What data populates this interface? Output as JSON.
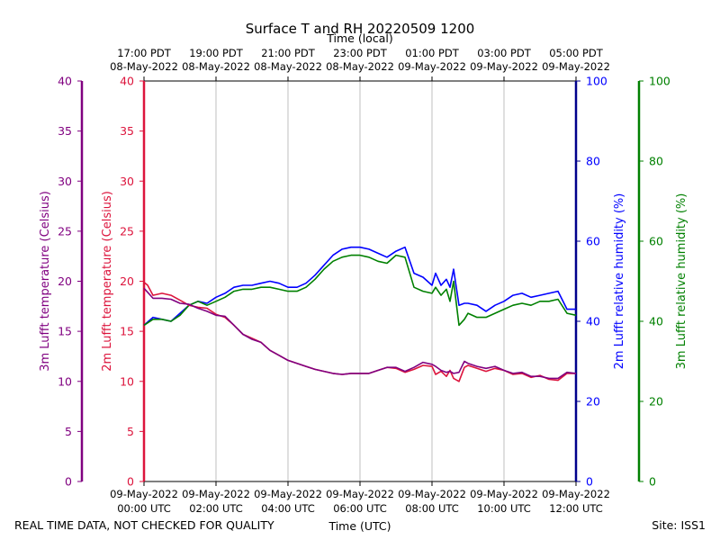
{
  "chart_data": {
    "type": "line",
    "title": "Surface T and RH 20220509 1200",
    "top_xlabel": "Time (local)",
    "xlabel": "Time (UTC)",
    "footer_left": "REAL TIME DATA, NOT CHECKED FOR QUALITY",
    "footer_right": "Site: ISS1",
    "x_range_hours": [
      0,
      12
    ],
    "bottom_ticks": [
      {
        "hour": 0,
        "date": "09-May-2022",
        "time": "00:00 UTC"
      },
      {
        "hour": 2,
        "date": "09-May-2022",
        "time": "02:00 UTC"
      },
      {
        "hour": 4,
        "date": "09-May-2022",
        "time": "04:00 UTC"
      },
      {
        "hour": 6,
        "date": "09-May-2022",
        "time": "06:00 UTC"
      },
      {
        "hour": 8,
        "date": "09-May-2022",
        "time": "08:00 UTC"
      },
      {
        "hour": 10,
        "date": "09-May-2022",
        "time": "10:00 UTC"
      },
      {
        "hour": 12,
        "date": "09-May-2022",
        "time": "12:00 UTC"
      }
    ],
    "top_ticks": [
      {
        "hour": 0,
        "time": "17:00 PDT",
        "date": "08-May-2022"
      },
      {
        "hour": 2,
        "time": "19:00 PDT",
        "date": "08-May-2022"
      },
      {
        "hour": 4,
        "time": "21:00 PDT",
        "date": "08-May-2022"
      },
      {
        "hour": 6,
        "time": "23:00 PDT",
        "date": "08-May-2022"
      },
      {
        "hour": 8,
        "time": "01:00 PDT",
        "date": "09-May-2022"
      },
      {
        "hour": 10,
        "time": "03:00 PDT",
        "date": "09-May-2022"
      },
      {
        "hour": 12,
        "time": "05:00 PDT",
        "date": "09-May-2022"
      }
    ],
    "axes": {
      "temp3": {
        "label": "3m Lufft temperature (Celsius)",
        "color": "#800080",
        "ylim": [
          0,
          40
        ],
        "ticks": [
          0,
          5,
          10,
          15,
          20,
          25,
          30,
          35,
          40
        ]
      },
      "temp2": {
        "label": "2m Lufft temperature (Celsius)",
        "color": "#dc143c",
        "ylim": [
          0,
          40
        ],
        "ticks": [
          0,
          5,
          10,
          15,
          20,
          25,
          30,
          35,
          40
        ]
      },
      "rh2": {
        "label": "2m Lufft relative humidity (%)",
        "color": "#0000ff",
        "spine_color": "#00008b",
        "ylim": [
          0,
          100
        ],
        "ticks": [
          0,
          20,
          40,
          60,
          80,
          100
        ]
      },
      "rh3": {
        "label": "3m Lufft relative humidity (%)",
        "color": "#008000",
        "ylim": [
          0,
          100
        ],
        "ticks": [
          0,
          20,
          40,
          60,
          80,
          100
        ]
      }
    },
    "series": [
      {
        "name": "2m Lufft temperature",
        "axis": "temp2",
        "color": "#dc143c",
        "x": [
          0,
          0.1,
          0.25,
          0.5,
          0.75,
          1.0,
          1.25,
          1.5,
          1.75,
          2.0,
          2.25,
          2.5,
          2.75,
          3.0,
          3.25,
          3.5,
          3.75,
          4.0,
          4.25,
          4.5,
          4.75,
          5.0,
          5.25,
          5.5,
          5.75,
          6.0,
          6.25,
          6.5,
          6.75,
          7.0,
          7.25,
          7.5,
          7.75,
          8.0,
          8.1,
          8.25,
          8.4,
          8.5,
          8.6,
          8.75,
          8.9,
          9.0,
          9.25,
          9.5,
          9.75,
          10.0,
          10.25,
          10.5,
          10.75,
          11.0,
          11.25,
          11.5,
          11.75,
          12.0
        ],
        "values": [
          19.9,
          19.6,
          18.6,
          18.8,
          18.6,
          18.1,
          17.6,
          17.4,
          17.3,
          16.7,
          16.4,
          15.6,
          14.7,
          14.3,
          13.9,
          13.1,
          12.6,
          12.1,
          11.8,
          11.5,
          11.2,
          11.0,
          10.8,
          10.7,
          10.8,
          10.8,
          10.8,
          11.1,
          11.4,
          11.3,
          10.9,
          11.2,
          11.6,
          11.5,
          10.7,
          11.0,
          10.5,
          11.1,
          10.3,
          10.0,
          11.4,
          11.6,
          11.3,
          11.0,
          11.3,
          11.1,
          10.7,
          10.8,
          10.4,
          10.6,
          10.2,
          10.1,
          10.8,
          10.8
        ]
      },
      {
        "name": "3m Lufft temperature",
        "axis": "temp3",
        "color": "#800080",
        "x": [
          0,
          0.1,
          0.25,
          0.5,
          0.75,
          1.0,
          1.25,
          1.5,
          1.75,
          2.0,
          2.25,
          2.5,
          2.75,
          3.0,
          3.25,
          3.5,
          3.75,
          4.0,
          4.25,
          4.5,
          4.75,
          5.0,
          5.25,
          5.5,
          5.75,
          6.0,
          6.25,
          6.5,
          6.75,
          7.0,
          7.25,
          7.5,
          7.75,
          8.0,
          8.1,
          8.25,
          8.4,
          8.5,
          8.6,
          8.75,
          8.9,
          9.0,
          9.25,
          9.5,
          9.75,
          10.0,
          10.25,
          10.5,
          10.75,
          11.0,
          11.25,
          11.5,
          11.75,
          12.0
        ],
        "values": [
          19.3,
          18.9,
          18.3,
          18.3,
          18.2,
          17.8,
          17.7,
          17.3,
          17.0,
          16.6,
          16.5,
          15.6,
          14.7,
          14.2,
          13.9,
          13.1,
          12.6,
          12.1,
          11.8,
          11.5,
          11.2,
          11.0,
          10.8,
          10.7,
          10.8,
          10.8,
          10.8,
          11.1,
          11.4,
          11.4,
          11.0,
          11.4,
          11.9,
          11.7,
          11.5,
          11.1,
          10.9,
          11.0,
          10.8,
          10.9,
          12.0,
          11.8,
          11.5,
          11.3,
          11.5,
          11.1,
          10.8,
          10.9,
          10.5,
          10.5,
          10.3,
          10.3,
          10.9,
          10.8
        ]
      },
      {
        "name": "2m Lufft relative humidity",
        "axis": "rh2",
        "color": "#0000ff",
        "x": [
          0,
          0.25,
          0.5,
          0.75,
          1.0,
          1.25,
          1.5,
          1.75,
          2.0,
          2.25,
          2.5,
          2.75,
          3.0,
          3.25,
          3.5,
          3.75,
          4.0,
          4.25,
          4.5,
          4.75,
          5.0,
          5.25,
          5.5,
          5.75,
          6.0,
          6.25,
          6.5,
          6.75,
          7.0,
          7.25,
          7.5,
          7.75,
          8.0,
          8.1,
          8.25,
          8.4,
          8.5,
          8.6,
          8.75,
          8.9,
          9.0,
          9.25,
          9.5,
          9.75,
          10.0,
          10.25,
          10.5,
          10.75,
          11.0,
          11.25,
          11.5,
          11.75,
          12.0
        ],
        "values": [
          39,
          41,
          40.5,
          40,
          42,
          44,
          45,
          44.5,
          46,
          47,
          48.5,
          49,
          49,
          49.5,
          50,
          49.5,
          48.5,
          48.5,
          49.5,
          51.5,
          54,
          56.5,
          58,
          58.5,
          58.5,
          58,
          57,
          56,
          57.5,
          58.5,
          52,
          51,
          49,
          52,
          49,
          50.5,
          48.5,
          53,
          44,
          44.5,
          44.5,
          44,
          42.5,
          44,
          45,
          46.5,
          47,
          46,
          46.5,
          47,
          47.5,
          43,
          43
        ]
      },
      {
        "name": "3m Lufft relative humidity",
        "axis": "rh3",
        "color": "#008000",
        "x": [
          0,
          0.25,
          0.5,
          0.75,
          1.0,
          1.25,
          1.5,
          1.75,
          2.0,
          2.25,
          2.5,
          2.75,
          3.0,
          3.25,
          3.5,
          3.75,
          4.0,
          4.25,
          4.5,
          4.75,
          5.0,
          5.25,
          5.5,
          5.75,
          6.0,
          6.25,
          6.5,
          6.75,
          7.0,
          7.25,
          7.5,
          7.75,
          8.0,
          8.1,
          8.25,
          8.4,
          8.5,
          8.6,
          8.75,
          8.9,
          9.0,
          9.25,
          9.5,
          9.75,
          10.0,
          10.25,
          10.5,
          10.75,
          11.0,
          11.25,
          11.5,
          11.75,
          12.0
        ],
        "values": [
          39,
          40.5,
          40.5,
          40,
          41.5,
          44,
          45,
          44,
          45,
          46,
          47.5,
          48,
          48,
          48.5,
          48.5,
          48,
          47.5,
          47.5,
          48.5,
          50.5,
          53,
          55,
          56,
          56.5,
          56.5,
          56,
          55,
          54.5,
          56.5,
          56,
          48.5,
          47.5,
          47,
          48.5,
          46.5,
          48,
          45,
          50,
          39,
          40.5,
          42,
          41,
          41,
          42,
          43,
          44,
          44.5,
          44,
          45,
          45,
          45.5,
          42,
          41.5
        ]
      }
    ]
  }
}
